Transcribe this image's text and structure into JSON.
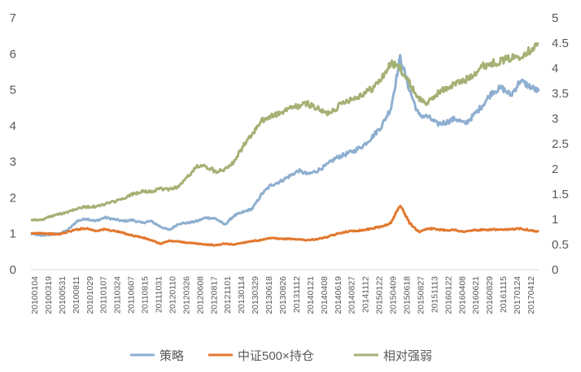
{
  "chart_data": {
    "type": "line",
    "title": "",
    "xlabel": "",
    "ylabel": "",
    "y_left": {
      "lim": [
        0,
        7
      ],
      "ticks": [
        0,
        1,
        2,
        3,
        4,
        5,
        6,
        7
      ]
    },
    "y_right": {
      "lim": [
        0,
        5
      ],
      "ticks": [
        "0",
        "0.5",
        "1",
        "1.5",
        "2",
        "2.5",
        "3",
        "3.5",
        "4",
        "4.5",
        "5"
      ]
    },
    "grid": false,
    "legend_position": "bottom",
    "x_tick_labels": [
      "20100104",
      "20100319",
      "20100531",
      "20100811",
      "20101029",
      "20110107",
      "20110324",
      "20110607",
      "20110815",
      "20111031",
      "20120110",
      "20120326",
      "20120608",
      "20120817",
      "20121101",
      "20130114",
      "20130329",
      "20130618",
      "20130826",
      "20131112",
      "20140121",
      "20140408",
      "20140619",
      "20140827",
      "20141112",
      "20150122",
      "20150409",
      "20150618",
      "20150827",
      "20151113",
      "20160122",
      "20160408",
      "20160621",
      "20160829",
      "20161115",
      "20170124",
      "20170412"
    ],
    "series": [
      {
        "name": "策略",
        "axis": "left",
        "color": "#8EAFD0",
        "values": [
          1.0,
          0.95,
          0.97,
          1.0,
          1.1,
          1.35,
          1.42,
          1.35,
          1.45,
          1.4,
          1.35,
          1.38,
          1.3,
          1.35,
          1.2,
          1.1,
          1.28,
          1.3,
          1.35,
          1.45,
          1.42,
          1.25,
          1.5,
          1.6,
          1.7,
          2.1,
          2.35,
          2.45,
          2.6,
          2.75,
          2.65,
          2.75,
          2.9,
          3.1,
          3.2,
          3.3,
          3.45,
          3.7,
          4.0,
          4.5,
          5.9,
          5.0,
          4.3,
          4.25,
          4.05,
          4.1,
          4.2,
          4.05,
          4.3,
          4.6,
          4.95,
          5.05,
          4.85,
          5.25,
          5.1,
          4.95
        ]
      },
      {
        "name": "中证500×持仓",
        "axis": "left",
        "color": "#E2782E",
        "values": [
          1.0,
          1.02,
          1.0,
          0.98,
          1.05,
          1.12,
          1.15,
          1.08,
          1.12,
          1.08,
          1.02,
          0.95,
          0.9,
          0.82,
          0.72,
          0.8,
          0.78,
          0.75,
          0.72,
          0.7,
          0.68,
          0.72,
          0.7,
          0.75,
          0.8,
          0.82,
          0.88,
          0.85,
          0.86,
          0.84,
          0.82,
          0.85,
          0.9,
          0.98,
          1.05,
          1.08,
          1.1,
          1.15,
          1.2,
          1.3,
          1.8,
          1.3,
          1.05,
          1.15,
          1.12,
          1.1,
          1.1,
          1.05,
          1.1,
          1.1,
          1.12,
          1.1,
          1.12,
          1.15,
          1.1,
          1.05
        ]
      },
      {
        "name": "相对强弱",
        "axis": "right",
        "color": "#A4B174",
        "values": [
          1.0,
          0.98,
          1.05,
          1.1,
          1.15,
          1.22,
          1.25,
          1.25,
          1.3,
          1.35,
          1.4,
          1.5,
          1.55,
          1.55,
          1.6,
          1.6,
          1.65,
          1.85,
          2.05,
          2.05,
          1.95,
          2.0,
          2.15,
          2.45,
          2.7,
          2.95,
          3.05,
          3.1,
          3.2,
          3.25,
          3.3,
          3.2,
          3.1,
          3.2,
          3.35,
          3.4,
          3.5,
          3.6,
          3.8,
          4.1,
          4.0,
          3.7,
          3.4,
          3.3,
          3.5,
          3.6,
          3.7,
          3.75,
          3.9,
          4.05,
          4.1,
          4.15,
          4.2,
          4.25,
          4.35,
          4.5
        ]
      }
    ]
  }
}
